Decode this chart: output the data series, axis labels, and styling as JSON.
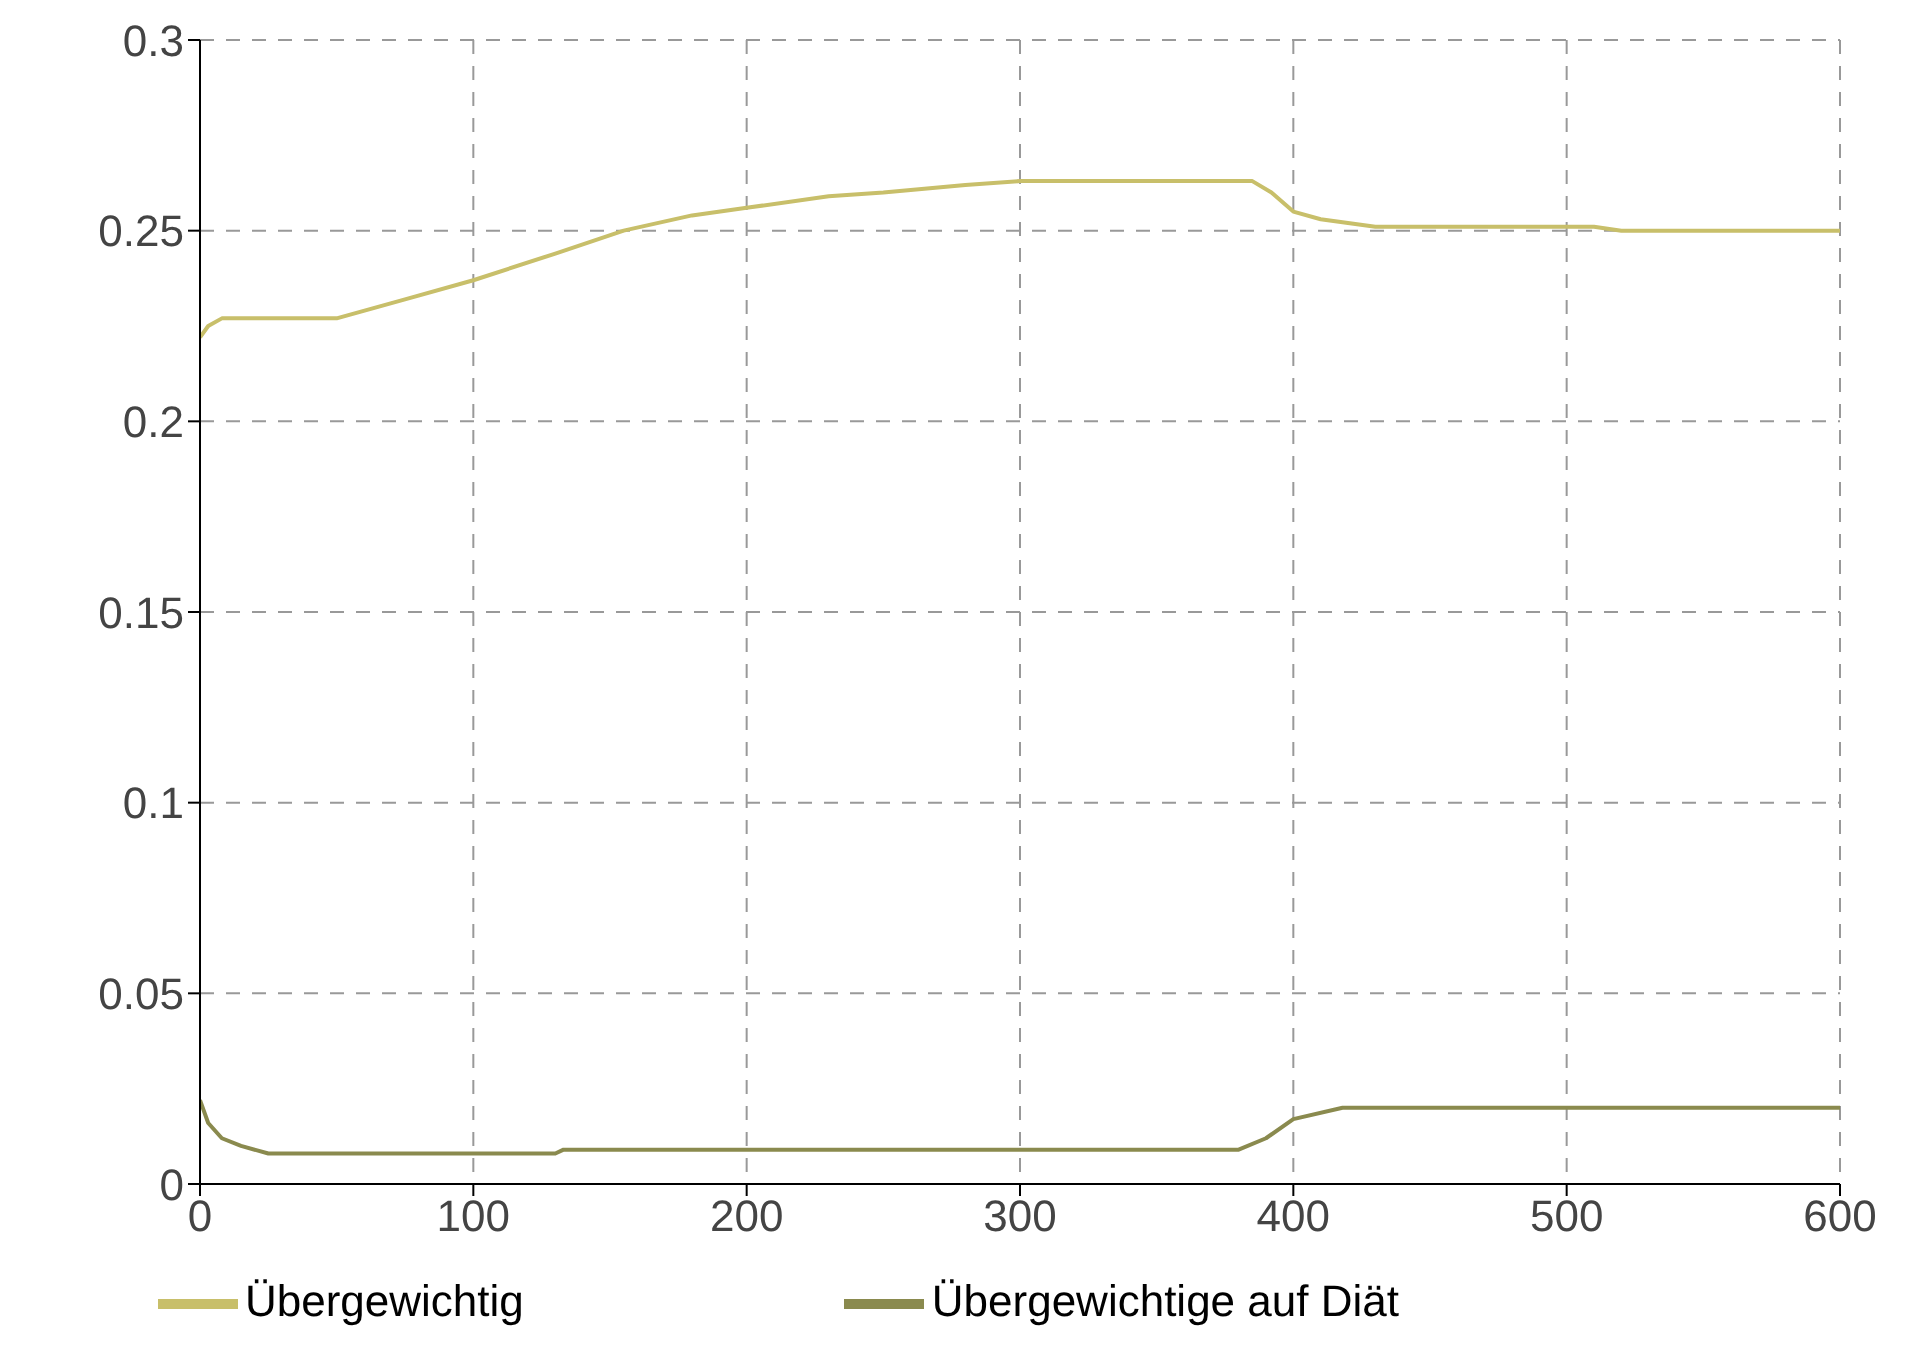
{
  "chart_data": {
    "type": "line",
    "xlim": [
      0,
      600
    ],
    "xticks": [
      0,
      100,
      200,
      300,
      400,
      500,
      600
    ],
    "ylim": [
      0,
      0.3
    ],
    "yticks": [
      0,
      0.05,
      0.1,
      0.15,
      0.2,
      0.25,
      0.3
    ],
    "grid": true,
    "legend": "bottom",
    "marker": "none",
    "line_style": "solid",
    "series": [
      {
        "name": "Übergewichtig",
        "color": "#c8bf6a",
        "x": [
          0,
          3,
          8,
          50,
          75,
          100,
          130,
          155,
          180,
          200,
          230,
          250,
          280,
          300,
          350,
          385,
          392,
          400,
          410,
          430,
          510,
          520,
          600
        ],
        "values": [
          0.222,
          0.225,
          0.227,
          0.227,
          0.232,
          0.237,
          0.244,
          0.25,
          0.254,
          0.256,
          0.259,
          0.26,
          0.262,
          0.263,
          0.263,
          0.263,
          0.26,
          0.255,
          0.253,
          0.251,
          0.251,
          0.25,
          0.25
        ]
      },
      {
        "name": "Übergewichtige auf Diät",
        "color": "#8a8a4e",
        "x": [
          0,
          3,
          8,
          15,
          25,
          60,
          130,
          133,
          200,
          300,
          380,
          390,
          400,
          418,
          500,
          600
        ],
        "values": [
          0.022,
          0.016,
          0.012,
          0.01,
          0.008,
          0.008,
          0.008,
          0.009,
          0.009,
          0.009,
          0.009,
          0.012,
          0.017,
          0.02,
          0.02,
          0.02
        ]
      }
    ]
  }
}
